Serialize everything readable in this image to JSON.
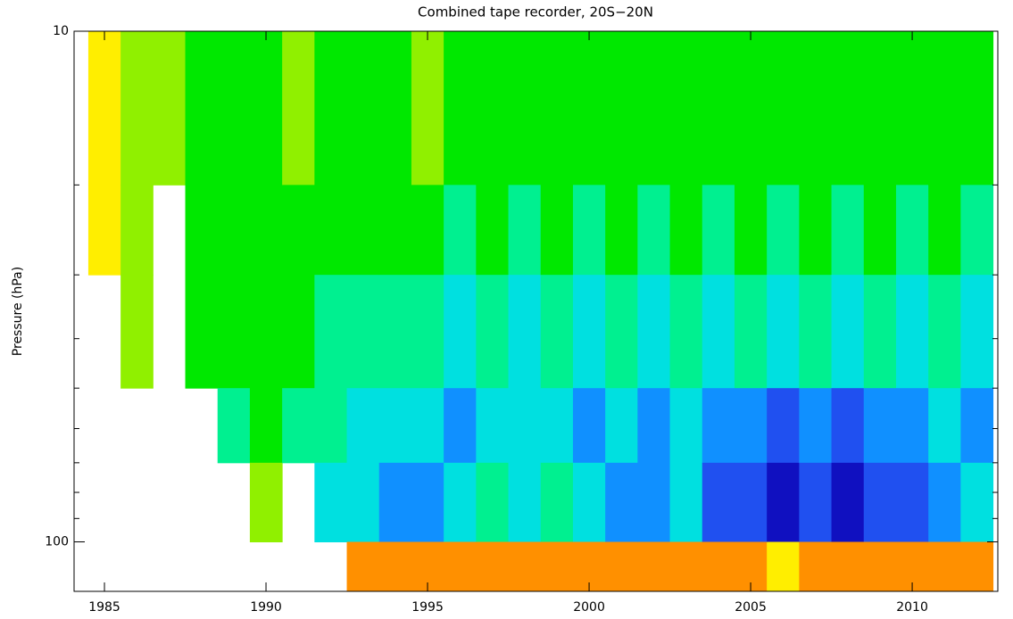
{
  "chart_data": {
    "type": "contour",
    "title": "Combined tape recorder, 20S−20N",
    "ylabel": "Pressure (hPa)",
    "xlim": [
      1984.06,
      2012.65
    ],
    "xticks": [
      1985,
      1990,
      1995,
      2000,
      2005,
      2010
    ],
    "ylim": [
      10,
      125
    ],
    "ylog": true,
    "yticks": [
      10,
      100
    ],
    "yminorticks": [
      20,
      30,
      40,
      50,
      60,
      70,
      80,
      90
    ],
    "colors": [
      "#1010c0",
      "#2050f0",
      "#1090ff",
      "#00e0e0",
      "#00f090",
      "#00e800",
      "#90f000",
      "#ffee00",
      "#ff9000",
      "#ff2000"
    ],
    "x": [
      1985,
      1986,
      1987,
      1988,
      1989,
      1990,
      1991,
      1992,
      1993,
      1994,
      1995,
      1996,
      1997,
      1998,
      1999,
      2000,
      2001,
      2002,
      2003,
      2004,
      2005,
      2006,
      2007,
      2008,
      2009,
      2010,
      2011,
      2012
    ],
    "pressure_edges": [
      10,
      20,
      30,
      50,
      70,
      100,
      125
    ],
    "z": [
      [
        7,
        7,
        null,
        null,
        null,
        null
      ],
      [
        6,
        6,
        6,
        null,
        null,
        null
      ],
      [
        6,
        null,
        null,
        null,
        null,
        null
      ],
      [
        5,
        5,
        5,
        null,
        null,
        null
      ],
      [
        5,
        5,
        5,
        4,
        null,
        null
      ],
      [
        5,
        5,
        5,
        5,
        6,
        null
      ],
      [
        6,
        5,
        5,
        4,
        null,
        null
      ],
      [
        5,
        5,
        4,
        4,
        3,
        null
      ],
      [
        5,
        5,
        4,
        3,
        3,
        8
      ],
      [
        5,
        5,
        4,
        3,
        2,
        8
      ],
      [
        6,
        5,
        4,
        3,
        2,
        8
      ],
      [
        5,
        4,
        3,
        2,
        3,
        8
      ],
      [
        5,
        5,
        4,
        3,
        4,
        8
      ],
      [
        5,
        4,
        3,
        3,
        3,
        8
      ],
      [
        5,
        5,
        4,
        3,
        4,
        8
      ],
      [
        5,
        4,
        3,
        2,
        3,
        8
      ],
      [
        5,
        5,
        4,
        3,
        2,
        8
      ],
      [
        5,
        4,
        3,
        2,
        2,
        8
      ],
      [
        5,
        5,
        4,
        3,
        3,
        8
      ],
      [
        5,
        4,
        3,
        2,
        1,
        8
      ],
      [
        5,
        5,
        4,
        2,
        1,
        8
      ],
      [
        5,
        4,
        3,
        1,
        0,
        7
      ],
      [
        5,
        5,
        4,
        2,
        1,
        8
      ],
      [
        5,
        4,
        3,
        1,
        0,
        8
      ],
      [
        5,
        5,
        4,
        2,
        1,
        8
      ],
      [
        5,
        4,
        3,
        2,
        1,
        8
      ],
      [
        5,
        5,
        4,
        3,
        2,
        8
      ],
      [
        5,
        4,
        3,
        2,
        3,
        8
      ]
    ]
  }
}
